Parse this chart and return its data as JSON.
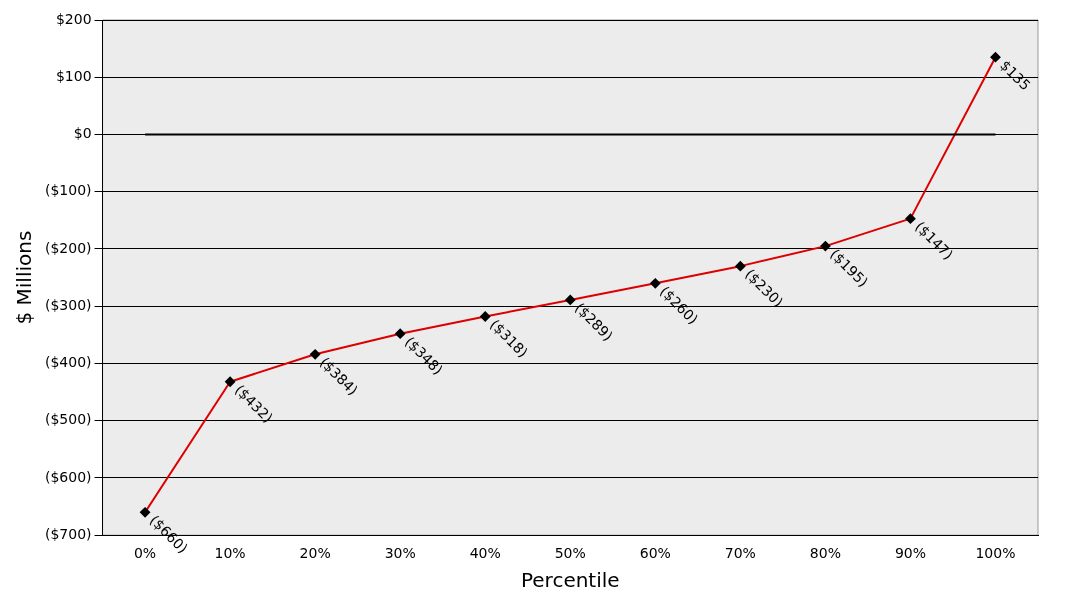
{
  "chart_data": {
    "type": "line",
    "xlabel": "Percentile",
    "ylabel": "$ Millions",
    "categories": [
      "0%",
      "10%",
      "20%",
      "30%",
      "40%",
      "50%",
      "60%",
      "70%",
      "80%",
      "90%",
      "100%"
    ],
    "series": [
      {
        "color": "#dd0000",
        "values": [
          -660,
          -432,
          -384,
          -348,
          -318,
          -289,
          -260,
          -230,
          -195,
          -147,
          135
        ],
        "value_labels": [
          "($660)",
          "($432)",
          "($384)",
          "($348)",
          "($318)",
          "($289)",
          "($260)",
          "($230)",
          "($195)",
          "($147)",
          "$135"
        ]
      }
    ],
    "ylim": [
      -700,
      200
    ],
    "yticks": [
      {
        "value": -700,
        "label": "($700)"
      },
      {
        "value": -600,
        "label": "($600)"
      },
      {
        "value": -500,
        "label": "($500)"
      },
      {
        "value": -400,
        "label": "($400)"
      },
      {
        "value": -300,
        "label": "($300)"
      },
      {
        "value": -200,
        "label": "($200)"
      },
      {
        "value": -100,
        "label": "($100)"
      },
      {
        "value": 0,
        "label": "$0"
      },
      {
        "value": 100,
        "label": "$100"
      },
      {
        "value": 200,
        "label": "$200"
      }
    ],
    "ref_lines": [
      {
        "axis": "y",
        "value": 0,
        "color": "#000000"
      }
    ],
    "grid": "y",
    "legend": false,
    "marker": "diamond",
    "line_style": "solid"
  }
}
